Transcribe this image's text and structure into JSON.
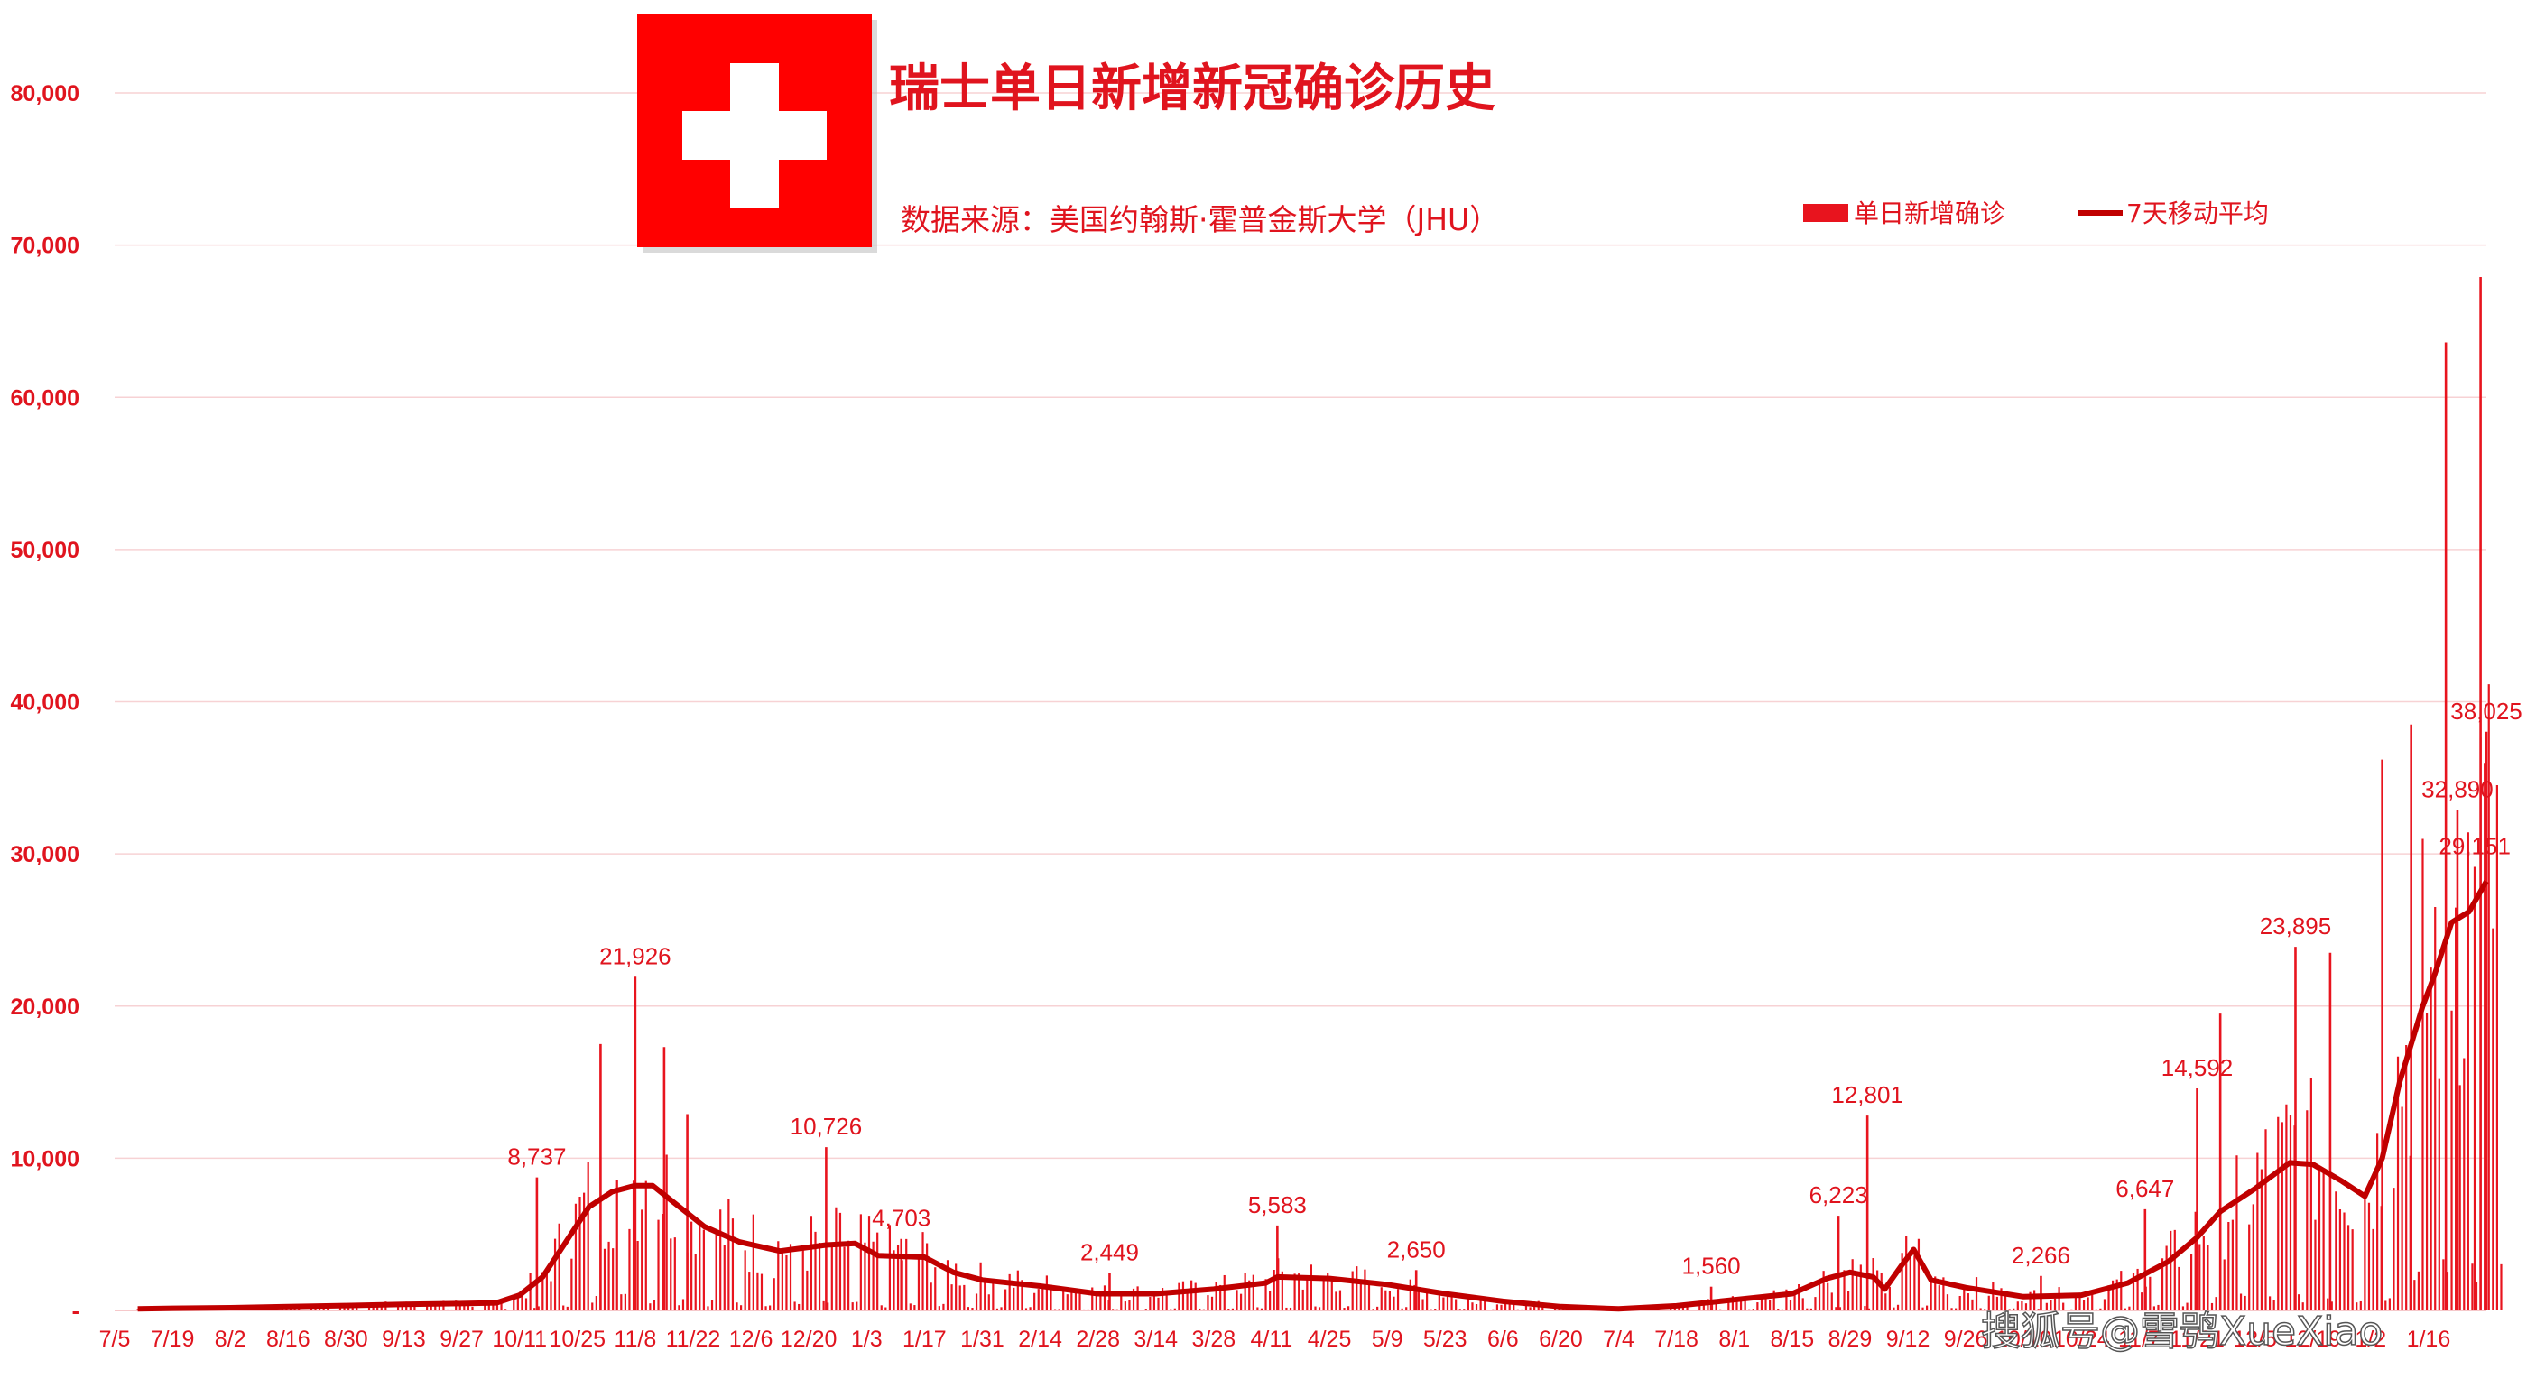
{
  "chart_data": {
    "type": "bar",
    "title": "瑞士单日新增新冠确诊历史",
    "source": "数据来源：美国约翰斯·霍普金斯大学（JHU）",
    "legend": {
      "position": "top-right",
      "bars": "单日新增确诊",
      "line": "7天移动平均"
    },
    "yticks": [
      "-",
      "10,000",
      "20,000",
      "30,000",
      "40,000",
      "50,000",
      "60,000",
      "70,000",
      "80,000"
    ],
    "ylim": [
      0,
      80000
    ],
    "grid": true,
    "xticks": [
      "7/5",
      "7/19",
      "8/2",
      "8/16",
      "8/30",
      "9/13",
      "9/27",
      "10/11",
      "10/25",
      "11/8",
      "11/22",
      "12/6",
      "12/20",
      "1/3",
      "1/17",
      "1/31",
      "2/14",
      "2/28",
      "3/14",
      "3/28",
      "4/11",
      "4/25",
      "5/9",
      "5/23",
      "6/6",
      "6/20",
      "7/4",
      "7/18",
      "8/1",
      "8/15",
      "8/29",
      "9/12",
      "9/26",
      "10/10",
      "10/24",
      "11/7",
      "11/21",
      "12/5",
      "12/19",
      "1/2",
      "1/16"
    ],
    "bar_series": {
      "name": "单日新增确诊",
      "color": "#e8141e",
      "spikes": [
        {
          "x": 7.3,
          "y": 8737
        },
        {
          "x": 8.4,
          "y": 17500
        },
        {
          "x": 9.0,
          "y": 21926
        },
        {
          "x": 9.5,
          "y": 17300
        },
        {
          "x": 9.9,
          "y": 12900
        },
        {
          "x": 12.3,
          "y": 10726
        },
        {
          "x": 13.6,
          "y": 4703
        },
        {
          "x": 17.2,
          "y": 2449
        },
        {
          "x": 20.1,
          "y": 5583
        },
        {
          "x": 22.5,
          "y": 2650
        },
        {
          "x": 27.6,
          "y": 1560
        },
        {
          "x": 29.8,
          "y": 6223
        },
        {
          "x": 30.3,
          "y": 12801
        },
        {
          "x": 33.3,
          "y": 2266
        },
        {
          "x": 35.1,
          "y": 6647
        },
        {
          "x": 36.0,
          "y": 14592
        },
        {
          "x": 36.4,
          "y": 19500
        },
        {
          "x": 37.7,
          "y": 23895
        },
        {
          "x": 38.3,
          "y": 23500
        },
        {
          "x": 39.2,
          "y": 36200
        },
        {
          "x": 39.7,
          "y": 38500
        },
        {
          "x": 40.3,
          "y": 63600
        },
        {
          "x": 40.5,
          "y": 32890
        },
        {
          "x": 40.8,
          "y": 29151
        },
        {
          "x": 40.9,
          "y": 67900
        },
        {
          "x": 41.0,
          "y": 38025
        }
      ]
    },
    "line_series": {
      "name": "7天移动平均",
      "color": "#c00000",
      "points": [
        {
          "x": 0.4,
          "y": 100
        },
        {
          "x": 1.0,
          "y": 140
        },
        {
          "x": 2.0,
          "y": 180
        },
        {
          "x": 3.0,
          "y": 250
        },
        {
          "x": 4.0,
          "y": 320
        },
        {
          "x": 5.0,
          "y": 400
        },
        {
          "x": 6.0,
          "y": 450
        },
        {
          "x": 6.6,
          "y": 500
        },
        {
          "x": 7.0,
          "y": 1000
        },
        {
          "x": 7.4,
          "y": 2200
        },
        {
          "x": 7.8,
          "y": 4500
        },
        {
          "x": 8.2,
          "y": 6800
        },
        {
          "x": 8.6,
          "y": 7800
        },
        {
          "x": 9.0,
          "y": 8200
        },
        {
          "x": 9.3,
          "y": 8200
        },
        {
          "x": 9.7,
          "y": 7000
        },
        {
          "x": 10.2,
          "y": 5500
        },
        {
          "x": 10.8,
          "y": 4500
        },
        {
          "x": 11.5,
          "y": 3900
        },
        {
          "x": 12.3,
          "y": 4300
        },
        {
          "x": 12.8,
          "y": 4400
        },
        {
          "x": 13.2,
          "y": 3600
        },
        {
          "x": 14.0,
          "y": 3500
        },
        {
          "x": 14.5,
          "y": 2500
        },
        {
          "x": 15.0,
          "y": 2000
        },
        {
          "x": 16.0,
          "y": 1600
        },
        {
          "x": 17.0,
          "y": 1100
        },
        {
          "x": 18.0,
          "y": 1100
        },
        {
          "x": 19.0,
          "y": 1400
        },
        {
          "x": 19.9,
          "y": 1800
        },
        {
          "x": 20.1,
          "y": 2200
        },
        {
          "x": 21.0,
          "y": 2100
        },
        {
          "x": 22.0,
          "y": 1700
        },
        {
          "x": 23.0,
          "y": 1100
        },
        {
          "x": 24.0,
          "y": 600
        },
        {
          "x": 25.0,
          "y": 250
        },
        {
          "x": 26.0,
          "y": 100
        },
        {
          "x": 27.0,
          "y": 300
        },
        {
          "x": 28.0,
          "y": 700
        },
        {
          "x": 29.0,
          "y": 1100
        },
        {
          "x": 29.6,
          "y": 2100
        },
        {
          "x": 30.0,
          "y": 2500
        },
        {
          "x": 30.4,
          "y": 2200
        },
        {
          "x": 30.6,
          "y": 1400
        },
        {
          "x": 30.9,
          "y": 3000
        },
        {
          "x": 31.1,
          "y": 4000
        },
        {
          "x": 31.4,
          "y": 2000
        },
        {
          "x": 32.0,
          "y": 1500
        },
        {
          "x": 33.0,
          "y": 900
        },
        {
          "x": 34.0,
          "y": 1000
        },
        {
          "x": 34.8,
          "y": 1800
        },
        {
          "x": 35.5,
          "y": 3200
        },
        {
          "x": 36.0,
          "y": 4800
        },
        {
          "x": 36.4,
          "y": 6500
        },
        {
          "x": 37.0,
          "y": 8000
        },
        {
          "x": 37.6,
          "y": 9700
        },
        {
          "x": 38.0,
          "y": 9600
        },
        {
          "x": 38.5,
          "y": 8500
        },
        {
          "x": 38.9,
          "y": 7500
        },
        {
          "x": 39.2,
          "y": 10000
        },
        {
          "x": 39.5,
          "y": 15000
        },
        {
          "x": 39.9,
          "y": 20000
        },
        {
          "x": 40.1,
          "y": 22000
        },
        {
          "x": 40.4,
          "y": 25500
        },
        {
          "x": 40.7,
          "y": 26200
        },
        {
          "x": 41.0,
          "y": 28200
        }
      ]
    },
    "data_labels": [
      {
        "text": "8,737",
        "x": 7.3,
        "y": 8737
      },
      {
        "text": "21,926",
        "x": 9.0,
        "y": 21926
      },
      {
        "text": "10,726",
        "x": 12.3,
        "y": 10726
      },
      {
        "text": "4,703",
        "x": 13.6,
        "y": 4703
      },
      {
        "text": "2,449",
        "x": 17.2,
        "y": 2449
      },
      {
        "text": "5,583",
        "x": 20.1,
        "y": 5583
      },
      {
        "text": "2,650",
        "x": 22.5,
        "y": 2650
      },
      {
        "text": "1,560",
        "x": 27.6,
        "y": 1560
      },
      {
        "text": "6,223",
        "x": 29.8,
        "y": 6223
      },
      {
        "text": "12,801",
        "x": 30.3,
        "y": 12801
      },
      {
        "text": "2,266",
        "x": 33.3,
        "y": 2266
      },
      {
        "text": "6,647",
        "x": 35.1,
        "y": 6647
      },
      {
        "text": "14,592",
        "x": 36.0,
        "y": 14592
      },
      {
        "text": "23,895",
        "x": 37.7,
        "y": 23895
      },
      {
        "text": "38,025",
        "x": 41.0,
        "y": 38025
      },
      {
        "text": "32,890",
        "x": 40.5,
        "y": 32890
      },
      {
        "text": "29,151",
        "x": 40.8,
        "y": 29151
      }
    ]
  },
  "watermark": "搜狐号@雪鸮XueXiao",
  "flag": {
    "name": "switzerland-flag",
    "color": "#ff0000",
    "cross_color": "#ffffff"
  }
}
